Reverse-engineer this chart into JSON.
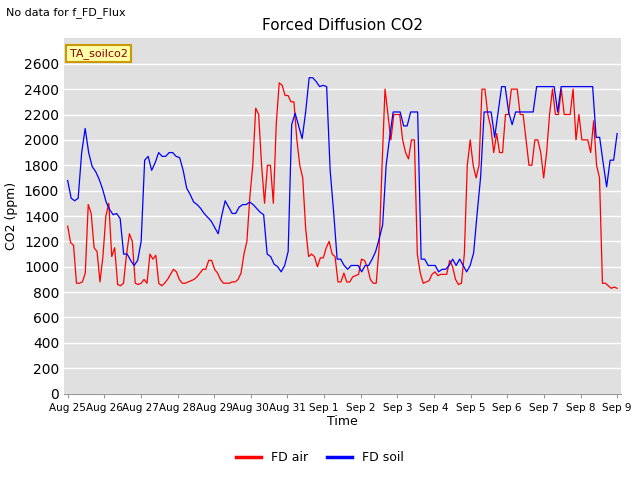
{
  "title": "Forced Diffusion CO2",
  "top_left_text": "No data for f_FD_Flux",
  "annotation_text": "TA_soilco2",
  "ylabel": "CO2 (ppm)",
  "xlabel": "Time",
  "ylim": [
    0,
    2800
  ],
  "yticks": [
    0,
    200,
    400,
    600,
    800,
    1000,
    1200,
    1400,
    1600,
    1800,
    2000,
    2200,
    2400,
    2600
  ],
  "legend_labels": [
    "FD air",
    "FD soil"
  ],
  "line_colors": [
    "red",
    "blue"
  ],
  "bg_color": "#e0e0e0",
  "x_tick_labels": [
    "Aug 25",
    "Aug 26",
    "Aug 27",
    "Aug 28",
    "Aug 29",
    "Aug 30",
    "Aug 31",
    "Sep 1",
    "Sep 2",
    "Sep 3",
    "Sep 4",
    "Sep 5",
    "Sep 6",
    "Sep 7",
    "Sep 8",
    "Sep 9"
  ],
  "fd_air": [
    1320,
    1190,
    1170,
    870,
    870,
    880,
    950,
    1490,
    1420,
    1150,
    1120,
    880,
    1080,
    1400,
    1500,
    1080,
    1150,
    860,
    850,
    870,
    1090,
    1260,
    1200,
    870,
    860,
    870,
    900,
    870,
    1100,
    1060,
    1090,
    870,
    850,
    870,
    900,
    940,
    980,
    960,
    900,
    870,
    870,
    880,
    890,
    900,
    920,
    950,
    980,
    980,
    1050,
    1050,
    980,
    950,
    900,
    870,
    870,
    870,
    880,
    880,
    900,
    950,
    1100,
    1200,
    1550,
    1800,
    2250,
    2200,
    1800,
    1500,
    1800,
    1800,
    1500,
    2130,
    2450,
    2430,
    2350,
    2350,
    2300,
    2300,
    2000,
    1800,
    1700,
    1300,
    1080,
    1100,
    1080,
    1000,
    1070,
    1070,
    1150,
    1200,
    1100,
    1080,
    880,
    880,
    950,
    880,
    880,
    920,
    930,
    940,
    1060,
    1050,
    1000,
    900,
    870,
    870,
    1150,
    1800,
    2400,
    2200,
    2000,
    2200,
    2200,
    2200,
    2000,
    1900,
    1850,
    2000,
    2000,
    1100,
    950,
    870,
    880,
    890,
    940,
    960,
    930,
    940,
    940,
    940,
    1050,
    1000,
    900,
    860,
    870,
    1100,
    1800,
    2000,
    1800,
    1700,
    1800,
    2400,
    2400,
    2200,
    2100,
    1900,
    2050,
    1900,
    1900,
    2200,
    2200,
    2400,
    2400,
    2400,
    2200,
    2200,
    2000,
    1800,
    1800,
    2000,
    2000,
    1900,
    1700,
    1900,
    2200,
    2400,
    2200,
    2200,
    2400,
    2200,
    2200,
    2200,
    2400,
    2000,
    2200,
    2000,
    2000,
    2000,
    1900,
    2150,
    1800,
    1700,
    870,
    870,
    850,
    830,
    840,
    830
  ],
  "fd_soil": [
    1680,
    1540,
    1520,
    1540,
    1900,
    2090,
    1900,
    1790,
    1750,
    1690,
    1610,
    1510,
    1450,
    1410,
    1420,
    1380,
    1100,
    1100,
    1050,
    1010,
    1050,
    1200,
    1840,
    1870,
    1760,
    1820,
    1900,
    1870,
    1870,
    1900,
    1900,
    1870,
    1860,
    1760,
    1620,
    1570,
    1510,
    1490,
    1460,
    1420,
    1390,
    1360,
    1310,
    1260,
    1400,
    1520,
    1470,
    1420,
    1420,
    1470,
    1490,
    1490,
    1510,
    1490,
    1460,
    1430,
    1410,
    1100,
    1080,
    1020,
    1000,
    960,
    1010,
    1120,
    2120,
    2210,
    2110,
    2010,
    2220,
    2490,
    2490,
    2460,
    2420,
    2430,
    2420,
    1760,
    1430,
    1060,
    1060,
    1010,
    980,
    1010,
    1010,
    1010,
    960,
    1010,
    1010,
    1060,
    1120,
    1220,
    1330,
    1800,
    2020,
    2220,
    2220,
    2220,
    2110,
    2110,
    2220,
    2220,
    2220,
    1060,
    1060,
    1010,
    1010,
    1010,
    960,
    980,
    980,
    1010,
    1060,
    1010,
    1060,
    1010,
    960,
    1010,
    1110,
    1420,
    1710,
    2220,
    2220,
    2220,
    2020,
    2220,
    2420,
    2420,
    2220,
    2120,
    2220,
    2220,
    2220,
    2220,
    2220,
    2220,
    2420,
    2420,
    2420,
    2420,
    2420,
    2420,
    2220,
    2420,
    2420,
    2420,
    2420,
    2420,
    2420,
    2420,
    2420,
    2420,
    2420,
    2020,
    2020,
    1820,
    1630,
    1840,
    1840,
    2050
  ]
}
